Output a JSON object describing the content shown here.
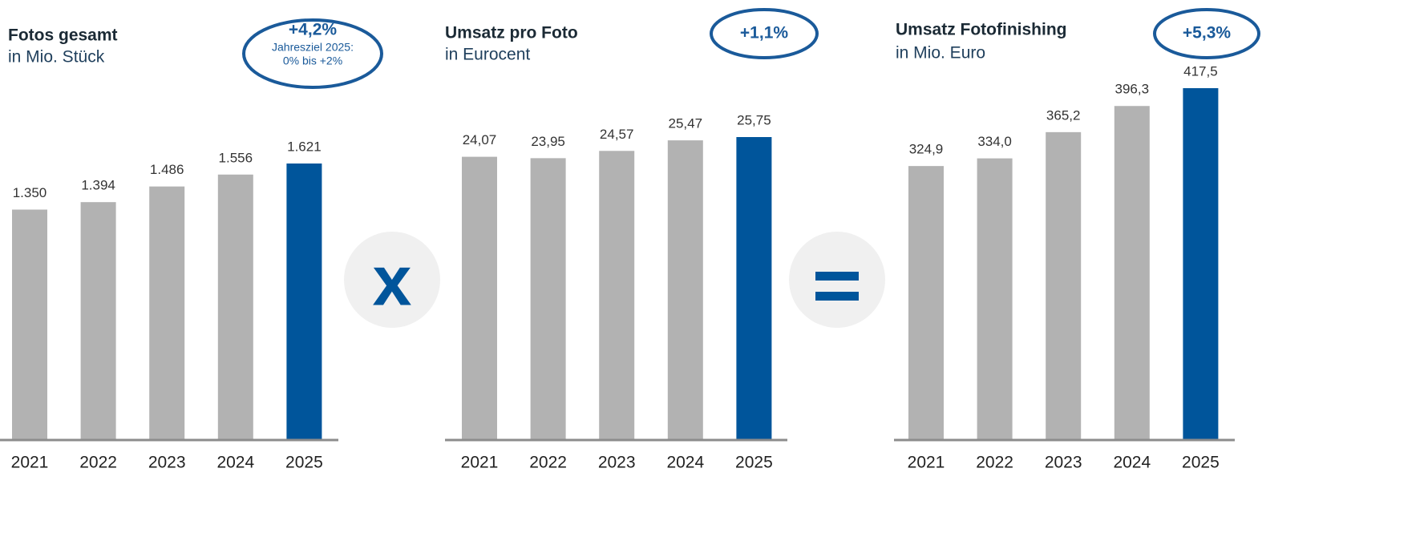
{
  "chart_data": [
    {
      "type": "bar",
      "title": "Fotos gesamt",
      "subtitle": "in Mio. Stück",
      "categories": [
        "2021",
        "2022",
        "2023",
        "2024",
        "2025"
      ],
      "values": [
        1350,
        1394,
        1486,
        1556,
        1621
      ],
      "value_labels": [
        "1.350",
        "1.394",
        "1.486",
        "1.556",
        "1.621"
      ],
      "colors": [
        "#b2b2b2",
        "#b2b2b2",
        "#b2b2b2",
        "#b2b2b2",
        "#00559b"
      ],
      "badge": {
        "label": "+4,2%",
        "note": [
          "Jahresziel 2025:",
          "0% bis +2%"
        ]
      }
    },
    {
      "type": "bar",
      "title": "Umsatz pro Foto",
      "subtitle": "in Eurocent",
      "categories": [
        "2021",
        "2022",
        "2023",
        "2024",
        "2025"
      ],
      "values": [
        24.07,
        23.95,
        24.57,
        25.47,
        25.75
      ],
      "value_labels": [
        "24,07",
        "23,95",
        "24,57",
        "25,47",
        "25,75"
      ],
      "colors": [
        "#b2b2b2",
        "#b2b2b2",
        "#b2b2b2",
        "#b2b2b2",
        "#00559b"
      ],
      "badge": {
        "label": "+1,1%"
      }
    },
    {
      "type": "bar",
      "title": "Umsatz Fotofinishing",
      "subtitle": "in Mio. Euro",
      "categories": [
        "2021",
        "2022",
        "2023",
        "2024",
        "2025"
      ],
      "values": [
        324.9,
        334.0,
        365.2,
        396.3,
        417.5
      ],
      "value_labels": [
        "324,9",
        "334,0",
        "365,2",
        "396,3",
        "417,5"
      ],
      "colors": [
        "#b2b2b2",
        "#b2b2b2",
        "#b2b2b2",
        "#b2b2b2",
        "#00559b"
      ],
      "badge": {
        "label": "+5,3%"
      }
    }
  ],
  "operators": [
    "x"
  ]
}
